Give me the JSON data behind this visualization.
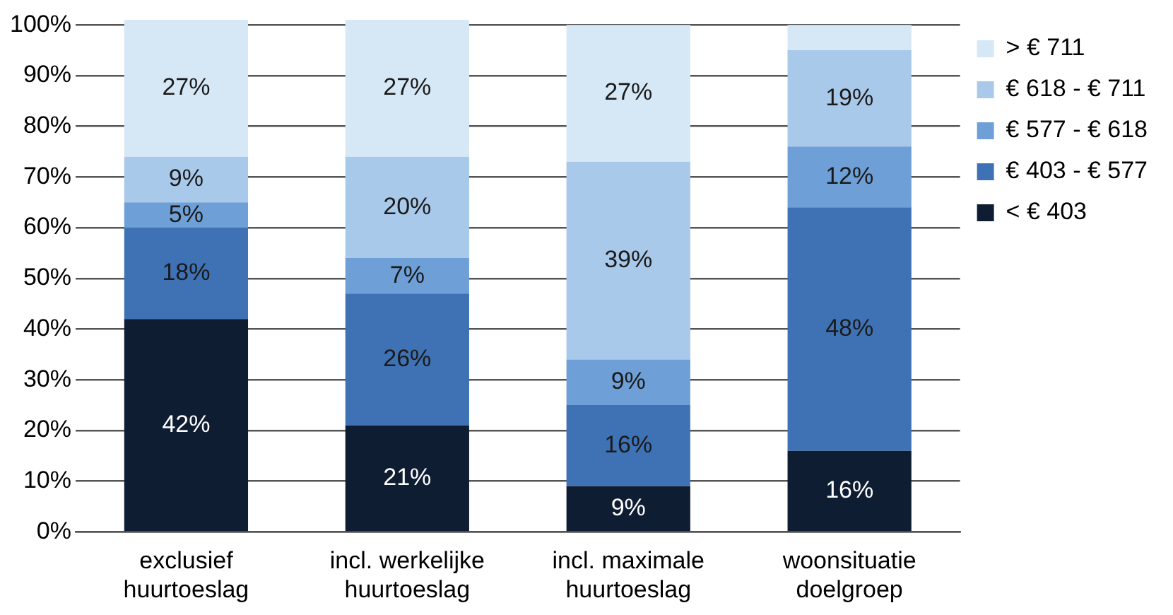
{
  "chart_data": {
    "type": "bar",
    "stacked": true,
    "categories": [
      "exclusief huurtoeslag",
      "incl. werkelijke huurtoeslag",
      "incl. maximale huurtoeslag",
      "woonsituatie doelgroep"
    ],
    "series": [
      {
        "name": "< € 403",
        "color": "#0f1d33",
        "values": [
          42,
          21,
          9,
          16
        ],
        "value_labels": [
          "42%",
          "21%",
          "9%",
          "16%"
        ]
      },
      {
        "name": "€ 403 - € 577",
        "color": "#3f72b5",
        "values": [
          18,
          26,
          16,
          48
        ],
        "value_labels": [
          "18%",
          "26%",
          "16%",
          "48%"
        ]
      },
      {
        "name": "€ 577 - € 618",
        "color": "#6e9fd6",
        "values": [
          5,
          7,
          9,
          12
        ],
        "value_labels": [
          "5%",
          "7%",
          "9%",
          "12%"
        ]
      },
      {
        "name": "€ 618 - € 711",
        "color": "#a9c9ea",
        "values": [
          9,
          20,
          39,
          19
        ],
        "value_labels": [
          "9%",
          "20%",
          "39%",
          "19%"
        ]
      },
      {
        "name": "> € 711",
        "color": "#d6e8f6",
        "values": [
          27,
          27,
          27,
          5
        ],
        "value_labels": [
          "27%",
          "27%",
          "27%",
          null
        ]
      }
    ],
    "ylim": [
      0,
      101
    ],
    "yticks": [
      {
        "value": 0,
        "label": "0%"
      },
      {
        "value": 10,
        "label": "10%"
      },
      {
        "value": 20,
        "label": "20%"
      },
      {
        "value": 30,
        "label": "30%"
      },
      {
        "value": 40,
        "label": "40%"
      },
      {
        "value": 50,
        "label": "50%"
      },
      {
        "value": 60,
        "label": "60%"
      },
      {
        "value": 70,
        "label": "70%"
      },
      {
        "value": 80,
        "label": "80%"
      },
      {
        "value": 90,
        "label": "90%"
      },
      {
        "value": 100,
        "label": "100%"
      }
    ],
    "grid": "y",
    "legend": "right"
  }
}
